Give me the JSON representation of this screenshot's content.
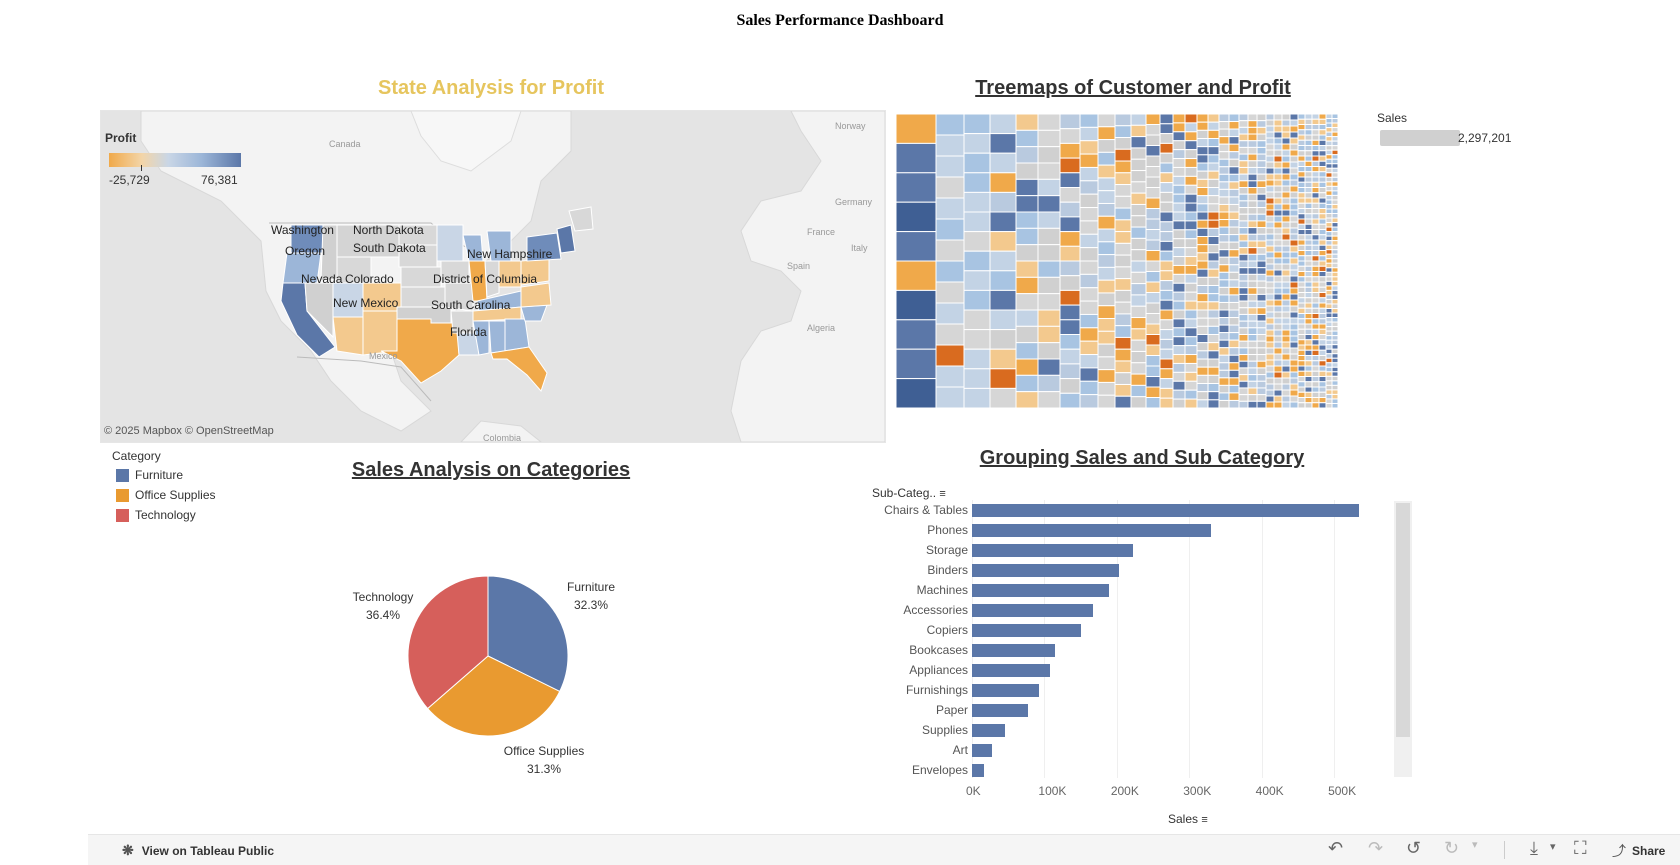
{
  "dashboard": {
    "title": "Sales Performance Dashboard"
  },
  "map": {
    "title": "State Analysis for Profit",
    "legend": {
      "title": "Profit",
      "min": "-25,729",
      "max": "76,381"
    },
    "states": [
      "Washington",
      "North Dakota",
      "Oregon",
      "South Dakota",
      "New Hampshire",
      "Nevada",
      "Colorado",
      "District of Columbia",
      "New Mexico",
      "South Carolina",
      "Florida"
    ],
    "geo_labels": [
      "Canada",
      "Mexico",
      "Colombia",
      "Norway",
      "Germany",
      "France",
      "Spain",
      "Italy",
      "Algeria"
    ],
    "attribution": "© 2025 Mapbox  © OpenStreetMap",
    "colors": {
      "low": "#f0a94a",
      "mid": "#d0d0d0",
      "high": "#5b77a8"
    }
  },
  "category_legend": {
    "title": "Category",
    "items": [
      {
        "label": "Furniture",
        "color": "#5b77a8"
      },
      {
        "label": "Office Supplies",
        "color": "#e99a30"
      },
      {
        "label": "Technology",
        "color": "#d65f5b"
      }
    ]
  },
  "treemap": {
    "title": "Treemaps of Customer and Profit",
    "size_legend": {
      "title": "Sales",
      "value": "2,297,201"
    }
  },
  "bar_chart": {
    "title": "Grouping Sales and Sub Category"
  },
  "chart_data": [
    {
      "type": "pie",
      "title": "Sales Analysis on Categories",
      "slices": [
        {
          "label": "Furniture",
          "pct_label": "32.3%",
          "value": 32.3,
          "color": "#5b77a8"
        },
        {
          "label": "Office Supplies",
          "pct_label": "31.3%",
          "value": 31.3,
          "color": "#e99a30"
        },
        {
          "label": "Technology",
          "pct_label": "36.4%",
          "value": 36.4,
          "color": "#d65f5b"
        }
      ]
    },
    {
      "type": "bar",
      "orientation": "horizontal",
      "ylabel": "Sub-Categ..",
      "xlabel": "Sales",
      "categories": [
        "Chairs & Tables",
        "Phones",
        "Storage",
        "Binders",
        "Machines",
        "Accessories",
        "Copiers",
        "Bookcases",
        "Appliances",
        "Furnishings",
        "Paper",
        "Supplies",
        "Art",
        "Envelopes"
      ],
      "values": [
        535000,
        330000,
        223000,
        203000,
        189000,
        167000,
        150000,
        115000,
        108000,
        92000,
        78000,
        46000,
        27000,
        16000
      ],
      "xlim": [
        0,
        580000
      ],
      "xticks": [
        "0K",
        "100K",
        "200K",
        "300K",
        "400K",
        "500K"
      ],
      "color": "#5b77a8"
    }
  ],
  "toolbar": {
    "view_link": "View on Tableau Public",
    "share_label": "Share"
  }
}
